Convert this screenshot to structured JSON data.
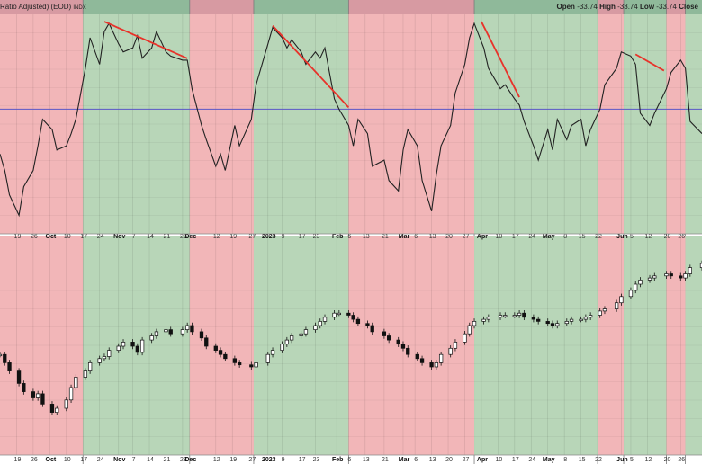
{
  "header": {
    "series_label": "Ratio Adjusted) (EOD)",
    "symbol": "INDX",
    "open_label": "Open",
    "open_value": "-33.74",
    "high_label": "High",
    "high_value": "-33.74",
    "low_label": "Low",
    "low_value": "-33.74",
    "close_label": "Close"
  },
  "colors": {
    "green_band": "#b8d6b8",
    "red_band": "#f2b6b8",
    "header_green": "#8fb99a",
    "header_red": "#d79aa2",
    "line": "#222222",
    "trend": "#e8322a",
    "reference": "#5a56c8"
  },
  "chart_data": [
    {
      "type": "line",
      "title": "",
      "reference_line": 0,
      "ylim": [
        -58,
        46
      ],
      "regimes": [
        {
          "start": "2022-09-12",
          "end": "2022-10-17",
          "state": "red"
        },
        {
          "start": "2022-10-17",
          "end": "2022-12-01",
          "state": "green"
        },
        {
          "start": "2022-12-01",
          "end": "2022-12-28",
          "state": "red"
        },
        {
          "start": "2022-12-28",
          "end": "2023-02-06",
          "state": "green"
        },
        {
          "start": "2023-02-06",
          "end": "2023-03-31",
          "state": "red"
        },
        {
          "start": "2023-03-31",
          "end": "2023-05-22",
          "state": "green"
        },
        {
          "start": "2023-05-22",
          "end": "2023-06-02",
          "state": "red"
        },
        {
          "start": "2023-06-02",
          "end": "2023-06-20",
          "state": "green"
        },
        {
          "start": "2023-06-20",
          "end": "2023-06-28",
          "state": "red"
        },
        {
          "start": "2023-06-28",
          "end": "2023-07-05",
          "state": "green"
        }
      ],
      "x": [
        "2022-09-12",
        "2022-09-14",
        "2022-09-16",
        "2022-09-20",
        "2022-09-22",
        "2022-09-26",
        "2022-09-28",
        "2022-09-30",
        "2022-10-04",
        "2022-10-06",
        "2022-10-10",
        "2022-10-12",
        "2022-10-14",
        "2022-10-18",
        "2022-10-20",
        "2022-10-24",
        "2022-10-26",
        "2022-10-28",
        "2022-11-01",
        "2022-11-03",
        "2022-11-07",
        "2022-11-09",
        "2022-11-11",
        "2022-11-15",
        "2022-11-17",
        "2022-11-21",
        "2022-11-23",
        "2022-11-28",
        "2022-11-30",
        "2022-12-02",
        "2022-12-06",
        "2022-12-08",
        "2022-12-12",
        "2022-12-14",
        "2022-12-16",
        "2022-12-20",
        "2022-12-22",
        "2022-12-27",
        "2022-12-29",
        "2023-01-03",
        "2023-01-05",
        "2023-01-09",
        "2023-01-11",
        "2023-01-13",
        "2023-01-17",
        "2023-01-19",
        "2023-01-23",
        "2023-01-25",
        "2023-01-27",
        "2023-01-31",
        "2023-02-02",
        "2023-02-06",
        "2023-02-08",
        "2023-02-10",
        "2023-02-14",
        "2023-02-16",
        "2023-02-21",
        "2023-02-23",
        "2023-02-27",
        "2023-03-01",
        "2023-03-03",
        "2023-03-07",
        "2023-03-09",
        "2023-03-13",
        "2023-03-15",
        "2023-03-17",
        "2023-03-21",
        "2023-03-23",
        "2023-03-27",
        "2023-03-29",
        "2023-03-31",
        "2023-04-04",
        "2023-04-06",
        "2023-04-11",
        "2023-04-13",
        "2023-04-17",
        "2023-04-19",
        "2023-04-21",
        "2023-04-25",
        "2023-04-27",
        "2023-05-01",
        "2023-05-03",
        "2023-05-05",
        "2023-05-09",
        "2023-05-11",
        "2023-05-15",
        "2023-05-17",
        "2023-05-19",
        "2023-05-23",
        "2023-05-25",
        "2023-05-30",
        "2023-06-01",
        "2023-06-05",
        "2023-06-07",
        "2023-06-09",
        "2023-06-13",
        "2023-06-15",
        "2023-06-20",
        "2023-06-22",
        "2023-06-26",
        "2023-06-28",
        "2023-06-30",
        "2023-07-05"
      ],
      "values": [
        -22,
        -30,
        -42,
        -52,
        -38,
        -30,
        -18,
        -5,
        -10,
        -20,
        -18,
        -12,
        -5,
        20,
        35,
        22,
        38,
        42,
        32,
        28,
        30,
        36,
        25,
        30,
        38,
        28,
        26,
        24,
        24,
        10,
        -8,
        -15,
        -28,
        -22,
        -30,
        -8,
        -18,
        -5,
        12,
        32,
        40,
        35,
        30,
        34,
        28,
        22,
        28,
        25,
        30,
        5,
        0,
        -8,
        -18,
        -5,
        -12,
        -28,
        -25,
        -35,
        -40,
        -20,
        -10,
        -18,
        -35,
        -50,
        -32,
        -18,
        -8,
        8,
        22,
        35,
        42,
        30,
        20,
        10,
        12,
        5,
        2,
        -6,
        -18,
        -25,
        -10,
        -20,
        -5,
        -15,
        -8,
        -5,
        -18,
        -10,
        0,
        12,
        20,
        28,
        26,
        22,
        -2,
        -8,
        -2,
        10,
        18,
        24,
        20,
        -6,
        -12
      ],
      "trend_lines": [
        {
          "start": "2022-10-26",
          "end": "2022-11-30"
        },
        {
          "start": "2023-01-05",
          "end": "2023-02-06"
        },
        {
          "start": "2023-04-03",
          "end": "2023-04-19"
        },
        {
          "start": "2023-06-07",
          "end": "2023-06-19"
        }
      ],
      "x_tick_labels": [
        {
          "label": "19",
          "date": "2022-09-19",
          "bold": false
        },
        {
          "label": "26",
          "date": "2022-09-26",
          "bold": false
        },
        {
          "label": "Oct",
          "date": "2022-10-03",
          "bold": true
        },
        {
          "label": "10",
          "date": "2022-10-10",
          "bold": false
        },
        {
          "label": "17",
          "date": "2022-10-17",
          "bold": false
        },
        {
          "label": "24",
          "date": "2022-10-24",
          "bold": false
        },
        {
          "label": "Nov",
          "date": "2022-11-01",
          "bold": true
        },
        {
          "label": "7",
          "date": "2022-11-07",
          "bold": false
        },
        {
          "label": "14",
          "date": "2022-11-14",
          "bold": false
        },
        {
          "label": "21",
          "date": "2022-11-21",
          "bold": false
        },
        {
          "label": "28",
          "date": "2022-11-28",
          "bold": false
        },
        {
          "label": "Dec",
          "date": "2022-12-01",
          "bold": true
        },
        {
          "label": "12",
          "date": "2022-12-12",
          "bold": false
        },
        {
          "label": "19",
          "date": "2022-12-19",
          "bold": false
        },
        {
          "label": "27",
          "date": "2022-12-27",
          "bold": false
        },
        {
          "label": "2023",
          "date": "2023-01-03",
          "bold": true
        },
        {
          "label": "9",
          "date": "2023-01-09",
          "bold": false
        },
        {
          "label": "17",
          "date": "2023-01-17",
          "bold": false
        },
        {
          "label": "23",
          "date": "2023-01-23",
          "bold": false
        },
        {
          "label": "Feb",
          "date": "2023-02-01",
          "bold": true
        },
        {
          "label": "6",
          "date": "2023-02-06",
          "bold": false
        },
        {
          "label": "13",
          "date": "2023-02-13",
          "bold": false
        },
        {
          "label": "21",
          "date": "2023-02-21",
          "bold": false
        },
        {
          "label": "Mar",
          "date": "2023-03-01",
          "bold": true
        },
        {
          "label": "6",
          "date": "2023-03-06",
          "bold": false
        },
        {
          "label": "13",
          "date": "2023-03-13",
          "bold": false
        },
        {
          "label": "20",
          "date": "2023-03-20",
          "bold": false
        },
        {
          "label": "27",
          "date": "2023-03-27",
          "bold": false
        },
        {
          "label": "Apr",
          "date": "2023-04-03",
          "bold": true
        },
        {
          "label": "10",
          "date": "2023-04-10",
          "bold": false
        },
        {
          "label": "17",
          "date": "2023-04-17",
          "bold": false
        },
        {
          "label": "24",
          "date": "2023-04-24",
          "bold": false
        },
        {
          "label": "May",
          "date": "2023-05-01",
          "bold": true
        },
        {
          "label": "8",
          "date": "2023-05-08",
          "bold": false
        },
        {
          "label": "15",
          "date": "2023-05-15",
          "bold": false
        },
        {
          "label": "22",
          "date": "2023-05-22",
          "bold": false
        },
        {
          "label": "Jun",
          "date": "2023-06-01",
          "bold": true
        },
        {
          "label": "5",
          "date": "2023-06-05",
          "bold": false
        },
        {
          "label": "12",
          "date": "2023-06-12",
          "bold": false
        },
        {
          "label": "20",
          "date": "2023-06-20",
          "bold": false
        },
        {
          "label": "26",
          "date": "2023-06-26",
          "bold": false
        }
      ]
    },
    {
      "type": "candlestick",
      "title": "",
      "ylim": [
        0,
        100
      ],
      "x": [
        "2022-09-12",
        "2022-09-14",
        "2022-09-16",
        "2022-09-20",
        "2022-09-22",
        "2022-09-26",
        "2022-09-28",
        "2022-09-30",
        "2022-10-04",
        "2022-10-06",
        "2022-10-10",
        "2022-10-12",
        "2022-10-14",
        "2022-10-18",
        "2022-10-20",
        "2022-10-24",
        "2022-10-26",
        "2022-10-28",
        "2022-11-01",
        "2022-11-03",
        "2022-11-07",
        "2022-11-09",
        "2022-11-11",
        "2022-11-15",
        "2022-11-17",
        "2022-11-21",
        "2022-11-23",
        "2022-11-28",
        "2022-11-30",
        "2022-12-02",
        "2022-12-06",
        "2022-12-08",
        "2022-12-12",
        "2022-12-14",
        "2022-12-16",
        "2022-12-20",
        "2022-12-22",
        "2022-12-27",
        "2022-12-29",
        "2023-01-03",
        "2023-01-05",
        "2023-01-09",
        "2023-01-11",
        "2023-01-13",
        "2023-01-17",
        "2023-01-19",
        "2023-01-23",
        "2023-01-25",
        "2023-01-27",
        "2023-01-31",
        "2023-02-02",
        "2023-02-06",
        "2023-02-08",
        "2023-02-10",
        "2023-02-14",
        "2023-02-16",
        "2023-02-21",
        "2023-02-23",
        "2023-02-27",
        "2023-03-01",
        "2023-03-03",
        "2023-03-07",
        "2023-03-09",
        "2023-03-13",
        "2023-03-15",
        "2023-03-17",
        "2023-03-21",
        "2023-03-23",
        "2023-03-27",
        "2023-03-29",
        "2023-03-31",
        "2023-04-04",
        "2023-04-06",
        "2023-04-11",
        "2023-04-13",
        "2023-04-17",
        "2023-04-19",
        "2023-04-21",
        "2023-04-25",
        "2023-04-27",
        "2023-05-01",
        "2023-05-03",
        "2023-05-05",
        "2023-05-09",
        "2023-05-11",
        "2023-05-15",
        "2023-05-17",
        "2023-05-19",
        "2023-05-23",
        "2023-05-25",
        "2023-05-30",
        "2023-06-01",
        "2023-06-05",
        "2023-06-07",
        "2023-06-09",
        "2023-06-13",
        "2023-06-15",
        "2023-06-20",
        "2023-06-22",
        "2023-06-26",
        "2023-06-28",
        "2023-06-30",
        "2023-07-05"
      ],
      "close": [
        46,
        42,
        38,
        32,
        28,
        25,
        27,
        22,
        18,
        20,
        24,
        30,
        35,
        38,
        42,
        44,
        45,
        48,
        50,
        52,
        50,
        47,
        53,
        55,
        57,
        58,
        56,
        58,
        60,
        57,
        54,
        50,
        48,
        46,
        44,
        42,
        41,
        40,
        42,
        46,
        48,
        51,
        53,
        55,
        56,
        58,
        60,
        62,
        64,
        66,
        66,
        65,
        63,
        61,
        60,
        57,
        55,
        53,
        51,
        49,
        46,
        44,
        42,
        40,
        42,
        46,
        49,
        52,
        56,
        60,
        62,
        63,
        64,
        65,
        65,
        65,
        66,
        64,
        63,
        62,
        61,
        60,
        61,
        62,
        63,
        63,
        64,
        65,
        67,
        68,
        71,
        74,
        77,
        80,
        82,
        83,
        84,
        85,
        84,
        83,
        85,
        88,
        90
      ],
      "x_tick_labels": [
        {
          "label": "19",
          "date": "2022-09-19",
          "bold": false
        },
        {
          "label": "26",
          "date": "2022-09-26",
          "bold": false
        },
        {
          "label": "Oct",
          "date": "2022-10-03",
          "bold": true
        },
        {
          "label": "10",
          "date": "2022-10-10",
          "bold": false
        },
        {
          "label": "17",
          "date": "2022-10-17",
          "bold": false
        },
        {
          "label": "24",
          "date": "2022-10-24",
          "bold": false
        },
        {
          "label": "Nov",
          "date": "2022-11-01",
          "bold": true
        },
        {
          "label": "7",
          "date": "2022-11-07",
          "bold": false
        },
        {
          "label": "14",
          "date": "2022-11-14",
          "bold": false
        },
        {
          "label": "21",
          "date": "2022-11-21",
          "bold": false
        },
        {
          "label": "28",
          "date": "2022-11-28",
          "bold": false
        },
        {
          "label": "Dec",
          "date": "2022-12-01",
          "bold": true
        },
        {
          "label": "12",
          "date": "2022-12-12",
          "bold": false
        },
        {
          "label": "19",
          "date": "2022-12-19",
          "bold": false
        },
        {
          "label": "27",
          "date": "2022-12-27",
          "bold": false
        },
        {
          "label": "2023",
          "date": "2023-01-03",
          "bold": true
        },
        {
          "label": "9",
          "date": "2023-01-09",
          "bold": false
        },
        {
          "label": "17",
          "date": "2023-01-17",
          "bold": false
        },
        {
          "label": "23",
          "date": "2023-01-23",
          "bold": false
        },
        {
          "label": "Feb",
          "date": "2023-02-01",
          "bold": true
        },
        {
          "label": "6",
          "date": "2023-02-06",
          "bold": false
        },
        {
          "label": "13",
          "date": "2023-02-13",
          "bold": false
        },
        {
          "label": "21",
          "date": "2023-02-21",
          "bold": false
        },
        {
          "label": "Mar",
          "date": "2023-03-01",
          "bold": true
        },
        {
          "label": "6",
          "date": "2023-03-06",
          "bold": false
        },
        {
          "label": "13",
          "date": "2023-03-13",
          "bold": false
        },
        {
          "label": "20",
          "date": "2023-03-20",
          "bold": false
        },
        {
          "label": "27",
          "date": "2023-03-27",
          "bold": false
        },
        {
          "label": "Apr",
          "date": "2023-04-03",
          "bold": true
        },
        {
          "label": "10",
          "date": "2023-04-10",
          "bold": false
        },
        {
          "label": "17",
          "date": "2023-04-17",
          "bold": false
        },
        {
          "label": "24",
          "date": "2023-04-24",
          "bold": false
        },
        {
          "label": "May",
          "date": "2023-05-01",
          "bold": true
        },
        {
          "label": "8",
          "date": "2023-05-08",
          "bold": false
        },
        {
          "label": "15",
          "date": "2023-05-15",
          "bold": false
        },
        {
          "label": "22",
          "date": "2023-05-22",
          "bold": false
        },
        {
          "label": "Jun",
          "date": "2023-06-01",
          "bold": true
        },
        {
          "label": "5",
          "date": "2023-06-05",
          "bold": false
        },
        {
          "label": "12",
          "date": "2023-06-12",
          "bold": false
        },
        {
          "label": "20",
          "date": "2023-06-20",
          "bold": false
        },
        {
          "label": "26",
          "date": "2023-06-26",
          "bold": false
        }
      ]
    }
  ]
}
